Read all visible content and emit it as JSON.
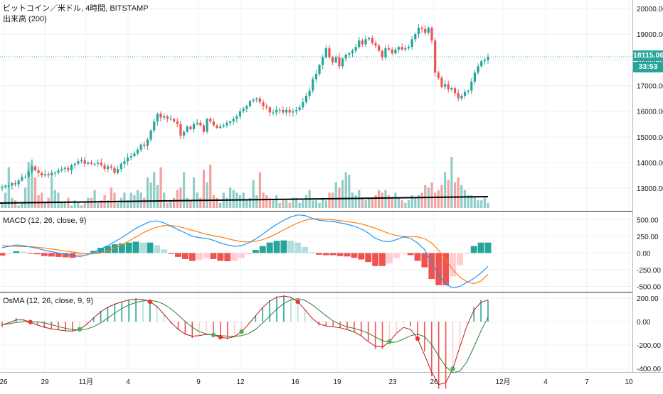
{
  "header": {
    "symbol_title": "ビットコイン／米ドル, 4時間, BITSTAMP",
    "volume_title": "出来高 (200)"
  },
  "macd_pane": {
    "title": "MACD (12, 26, close, 9)"
  },
  "osma_pane": {
    "title": "OsMA (12, 26, close, 9, 9)"
  },
  "price_tags": {
    "last_price": "18115.06",
    "countdown": "33:53"
  },
  "colors": {
    "up": "#26a69a",
    "down": "#ef5350",
    "vol_up": "#8fcdc7",
    "vol_down": "#f4a2a0",
    "macd_line": "#2196f3",
    "signal_line": "#ff7f0e",
    "hist_up_strong": "#26a69a",
    "hist_up_weak": "#b2dfdb",
    "hist_down_strong": "#ef5350",
    "hist_down_weak": "#ffcdd2",
    "osma_fast": "#b71c1c",
    "osma_slow": "#2e7d32",
    "grid": "#eef0f3",
    "price_line": "#26a69a",
    "volume_ma": "#000000"
  },
  "chart_data": [
    {
      "id": "price",
      "type": "candlestick",
      "title": "ビットコイン／米ドル, 4時間, BITSTAMP",
      "x_ticks": [
        "26",
        "29",
        "11月",
        "4",
        "9",
        "12",
        "16",
        "19",
        "23",
        "26",
        "12月",
        "4",
        "7",
        "10"
      ],
      "y_ticks": [
        "13000.00",
        "14000.00",
        "15000.00",
        "16000.00",
        "17000.00",
        "18000.00",
        "19000.00",
        "20000.00"
      ],
      "ylim": [
        12150,
        20300
      ],
      "last_price": 18115.06,
      "closes": [
        13050,
        13100,
        13100,
        13200,
        13150,
        13300,
        13450,
        13450,
        13650,
        13850,
        13700,
        13600,
        13500,
        13550,
        13500,
        13600,
        13600,
        13700,
        13750,
        13800,
        13700,
        13900,
        13950,
        14050,
        14100,
        13950,
        14000,
        13950,
        13950,
        14000,
        13900,
        13750,
        13850,
        13800,
        13600,
        13750,
        13950,
        14050,
        14200,
        14250,
        14350,
        14500,
        14700,
        14650,
        14900,
        15250,
        15600,
        15900,
        15750,
        15800,
        15700,
        15700,
        15600,
        15500,
        15050,
        15200,
        15400,
        15300,
        15500,
        15550,
        15450,
        15200,
        15700,
        15600,
        15450,
        15350,
        15400,
        15450,
        15550,
        15600,
        15700,
        15800,
        16000,
        16100,
        16200,
        16400,
        16450,
        16500,
        16350,
        16200,
        16150,
        15950,
        15950,
        16050,
        16050,
        15950,
        16050,
        15950,
        16000,
        16050,
        16150,
        16350,
        16600,
        16800,
        17250,
        17450,
        17800,
        18100,
        18450,
        18100,
        17900,
        18100,
        17750,
        18050,
        18200,
        18250,
        18350,
        18500,
        18750,
        18600,
        18800,
        18850,
        18650,
        18550,
        18350,
        18100,
        18450,
        18400,
        18250,
        18400,
        18500,
        18400,
        18450,
        18500,
        18800,
        19000,
        19250,
        19200,
        19050,
        19250,
        18750,
        17500,
        17300,
        16950,
        17050,
        16850,
        16900,
        16700,
        16500,
        16600,
        16750,
        16800,
        17150,
        17500,
        17750,
        17950,
        18000,
        18115
      ]
    },
    {
      "id": "volume",
      "type": "bar",
      "title": "出来高 (200)",
      "values": [
        0.1,
        0.3,
        0.8,
        0.2,
        0.15,
        0.05,
        0.1,
        0.4,
        0.9,
        0.95,
        0.6,
        0.25,
        0.3,
        0.1,
        0.2,
        0.6,
        0.35,
        0.3,
        0.1,
        0.1,
        0.2,
        0.05,
        0.15,
        0.1,
        0.05,
        0.1,
        0.2,
        0.2,
        0.35,
        0.1,
        0.15,
        0.25,
        0.15,
        0.4,
        0.3,
        0.1,
        0.2,
        0.3,
        0.15,
        0.3,
        0.25,
        0.35,
        0.3,
        0.2,
        0.6,
        0.5,
        0.7,
        0.45,
        0.8,
        0.3,
        0.1,
        0.15,
        0.2,
        0.35,
        0.4,
        0.7,
        0.2,
        0.15,
        0.6,
        0.3,
        0.2,
        0.75,
        0.5,
        0.85,
        0.25,
        0.2,
        0.1,
        0.3,
        0.2,
        0.4,
        0.35,
        0.3,
        0.25,
        0.3,
        0.15,
        0.2,
        0.55,
        0.25,
        0.7,
        0.3,
        0.25,
        0.2,
        0.15,
        0.25,
        0.1,
        0.15,
        0.15,
        0.1,
        0.2,
        0.2,
        0.1,
        0.15,
        0.25,
        0.35,
        0.15,
        0.15,
        0.1,
        0.2,
        0.15,
        0.3,
        0.3,
        0.5,
        0.4,
        0.55,
        0.7,
        0.65,
        0.3,
        0.25,
        0.35,
        0.2,
        0.15,
        0.2,
        0.2,
        0.25,
        0.35,
        0.3,
        0.35,
        0.25,
        0.2,
        0.3,
        0.2,
        0.15,
        0.1,
        0.15,
        0.25,
        0.2,
        0.25,
        0.3,
        0.45,
        0.4,
        0.5,
        0.3,
        0.35,
        0.45,
        0.7,
        0.55,
        1.0,
        0.5,
        0.6,
        0.45,
        0.35,
        0.25,
        0.25,
        0.2,
        0.15,
        0.15,
        0.2,
        0.1,
        0.15,
        0.15
      ],
      "ma_start": 12520,
      "ma_end": 12750
    },
    {
      "id": "macd",
      "type": "line",
      "title": "MACD (12, 26, close, 9)",
      "y_ticks": [
        "-500.00",
        "-250.00",
        "0.00",
        "250.00",
        "500.00"
      ],
      "ylim": [
        -580,
        620
      ],
      "series": [
        {
          "values": [
            80,
            100,
            120,
            110,
            90,
            70,
            40,
            20,
            0,
            -20,
            -40,
            -50,
            -30,
            10,
            60,
            110,
            170,
            230,
            300,
            370,
            420,
            470,
            480,
            450,
            400,
            350,
            300,
            250,
            230,
            220,
            190,
            150,
            120,
            100,
            110,
            150,
            210,
            280,
            360,
            430,
            490,
            540,
            570,
            560,
            520,
            490,
            480,
            470,
            450,
            430,
            400,
            360,
            300,
            220,
            180,
            170,
            200,
            240,
            220,
            150,
            50,
            -150,
            -330,
            -470,
            -520,
            -500,
            -440,
            -380,
            -300,
            -200
          ]
        },
        {
          "values": [
            110,
            105,
            100,
            95,
            95,
            85,
            75,
            60,
            45,
            30,
            15,
            0,
            -10,
            -15,
            0,
            30,
            70,
            120,
            180,
            240,
            300,
            350,
            390,
            410,
            410,
            395,
            370,
            340,
            310,
            280,
            260,
            240,
            215,
            190,
            170,
            165,
            175,
            200,
            240,
            290,
            345,
            400,
            450,
            490,
            510,
            510,
            505,
            495,
            485,
            470,
            455,
            435,
            405,
            370,
            330,
            290,
            260,
            250,
            245,
            240,
            215,
            150,
            40,
            -100,
            -250,
            -360,
            -430,
            -460,
            -420,
            -320
          ]
        }
      ]
    },
    {
      "id": "osma",
      "type": "line",
      "title": "OsMA (12, 26, close, 9, 9)",
      "y_ticks": [
        "-400.00",
        "-200.00",
        "0.00",
        "200.00"
      ],
      "ylim": [
        -430,
        250
      ]
    }
  ]
}
